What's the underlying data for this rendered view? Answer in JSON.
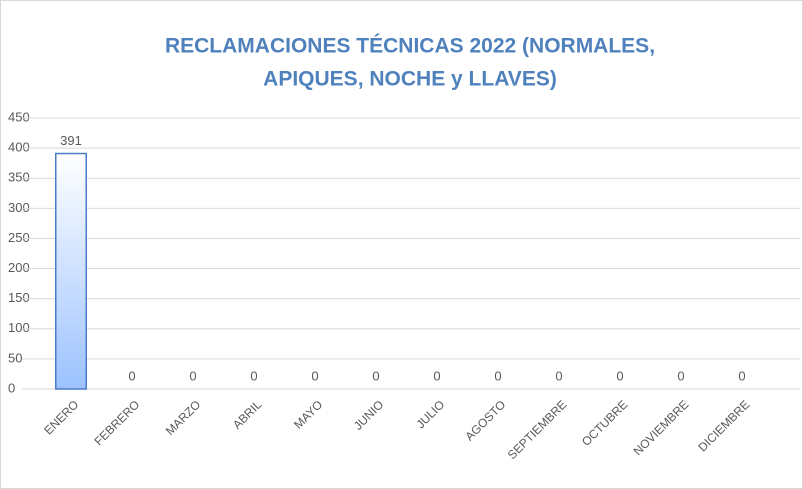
{
  "chart_data": {
    "type": "bar",
    "title": [
      "RECLAMACIONES TÉCNICAS 2022  (NORMALES,",
      "APIQUES, NOCHE y LLAVES)"
    ],
    "categories": [
      "ENERO",
      "FEBRERO",
      "MARZO",
      "ABRIL",
      "MAYO",
      "JUNIO",
      "JULIO",
      "AGOSTO",
      "SEPTIEMBRE",
      "OCTUBRE",
      "NOVIEMBRE",
      "DICIEMBRE"
    ],
    "values": [
      391,
      0,
      0,
      0,
      0,
      0,
      0,
      0,
      0,
      0,
      0,
      0
    ],
    "color": "#4a7cc7",
    "ylim": [
      0,
      450
    ],
    "yticks": [
      0,
      50,
      100,
      150,
      200,
      250,
      300,
      350,
      400,
      450
    ],
    "grid": true
  }
}
